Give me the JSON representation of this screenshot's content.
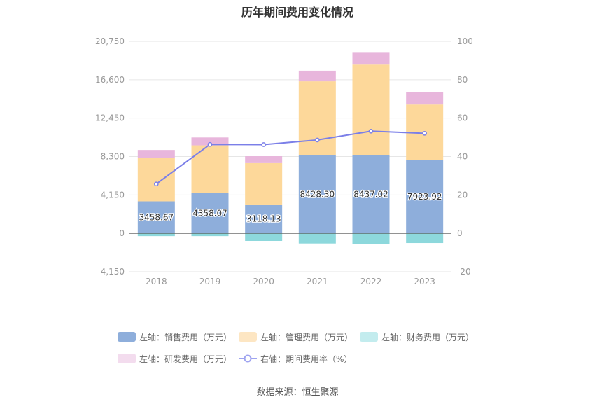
{
  "chart_data": {
    "type": "bar",
    "title": "历年期间费用变化情况",
    "categories": [
      "2018",
      "2019",
      "2020",
      "2021",
      "2022",
      "2023"
    ],
    "left_axis": {
      "ticks": [
        "-4,150",
        "0",
        "4,150",
        "8,300",
        "12,450",
        "16,600",
        "20,750"
      ],
      "ylim": [
        -4150,
        20750
      ]
    },
    "right_axis": {
      "ticks": [
        "-20",
        "0",
        "20",
        "40",
        "60",
        "80",
        "100"
      ],
      "ylim": [
        -20,
        100
      ]
    },
    "grid": true,
    "legend_position": "bottom",
    "series": [
      {
        "name": "左轴：销售费用（万元）",
        "kind": "bar",
        "axis": "left",
        "color": "#8eaedb",
        "values": [
          3458.67,
          4358.07,
          3118.13,
          8428.3,
          8437.02,
          7923.92
        ],
        "data_labels": [
          "3458.67",
          "4358.07",
          "3118.13",
          "8428.30",
          "8437.02",
          "7923.92"
        ]
      },
      {
        "name": "左轴：管理费用（万元）",
        "kind": "bar",
        "axis": "left",
        "color": "#fdd89a",
        "values": [
          4700,
          5150,
          4470,
          8000,
          9800,
          6000
        ]
      },
      {
        "name": "左轴：财务费用（万元）",
        "kind": "bar",
        "axis": "left",
        "color": "#8dd8dc",
        "values": [
          -300,
          -300,
          -820,
          -1100,
          -1150,
          -1050
        ]
      },
      {
        "name": "左轴：研发费用（万元）",
        "kind": "bar",
        "axis": "left",
        "color": "#e8b6dc",
        "values": [
          850,
          850,
          750,
          1150,
          1350,
          1350
        ]
      },
      {
        "name": "右轴：期间费用率（%）",
        "kind": "line",
        "axis": "right",
        "color": "#7b7fe8",
        "values": [
          25.7,
          46.3,
          46.2,
          48.6,
          53.2,
          52.1
        ]
      }
    ],
    "legend_colors": [
      "#8eaedb",
      "#fde6c3",
      "#c3ecee",
      "#f3dcee",
      "#9ea3f0"
    ]
  },
  "source": "数据来源：恒生聚源"
}
